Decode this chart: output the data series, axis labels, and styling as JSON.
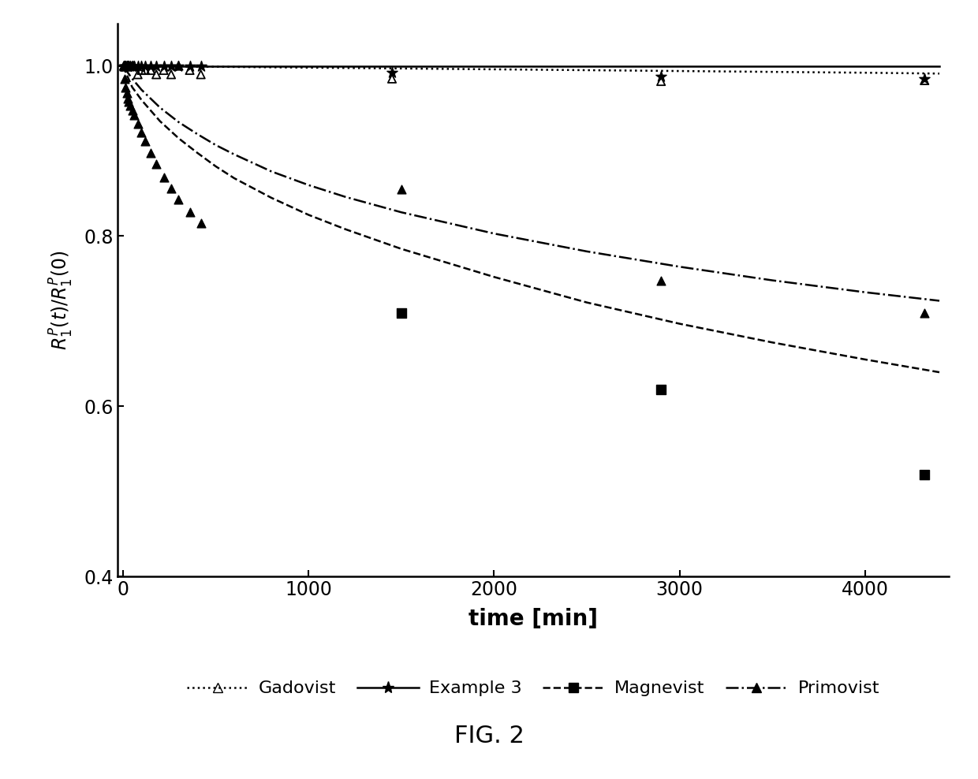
{
  "title": "FIG. 2",
  "ylabel": "$R_1^P(t)/R_1^P(0)$",
  "xlabel": "time [min]",
  "xlim": [
    -30,
    4450
  ],
  "ylim": [
    0.4,
    1.05
  ],
  "yticks": [
    0.4,
    0.6,
    0.8,
    1.0
  ],
  "xticks": [
    0,
    1000,
    2000,
    3000,
    4000
  ],
  "gadovist_scatter_x": [
    5,
    10,
    15,
    20,
    25,
    30,
    40,
    50,
    60,
    80,
    100,
    120,
    150,
    180,
    220,
    260,
    300,
    360,
    420,
    1450,
    2900,
    4320
  ],
  "gadovist_scatter_y": [
    1.0,
    1.0,
    1.0,
    1.0,
    1.0,
    1.0,
    1.0,
    1.0,
    1.0,
    0.99,
    0.995,
    0.995,
    0.995,
    0.99,
    0.995,
    0.99,
    1.0,
    0.995,
    0.99,
    0.985,
    0.982,
    0.983
  ],
  "gadovist_curve_x": [
    0,
    100,
    300,
    500,
    1000,
    1500,
    2000,
    2500,
    3000,
    3500,
    4000,
    4400
  ],
  "gadovist_curve_y": [
    1.0,
    0.999,
    0.999,
    0.999,
    0.998,
    0.997,
    0.996,
    0.995,
    0.994,
    0.993,
    0.992,
    0.991
  ],
  "example3_scatter_x": [
    5,
    10,
    15,
    20,
    25,
    30,
    40,
    50,
    60,
    80,
    100,
    120,
    150,
    180,
    220,
    260,
    300,
    360,
    420,
    1450,
    2900,
    4320
  ],
  "example3_scatter_y": [
    1.0,
    1.0,
    1.0,
    1.0,
    1.0,
    1.0,
    1.0,
    1.0,
    1.0,
    1.0,
    1.0,
    1.0,
    1.0,
    1.0,
    1.0,
    1.0,
    1.0,
    1.0,
    1.0,
    0.992,
    0.988,
    0.985
  ],
  "example3_curve_x": [
    0,
    1000,
    2000,
    3000,
    4000,
    4400
  ],
  "example3_curve_y": [
    1.0,
    1.0,
    1.0,
    1.0,
    1.0,
    1.0
  ],
  "magnevist_scatter_x": [
    1500,
    2900,
    4320
  ],
  "magnevist_scatter_y": [
    0.71,
    0.62,
    0.52
  ],
  "magnevist_curve_x": [
    0,
    50,
    100,
    200,
    300,
    400,
    500,
    600,
    800,
    1000,
    1200,
    1500,
    2000,
    2500,
    3000,
    3500,
    4000,
    4400
  ],
  "magnevist_curve_y": [
    1.0,
    0.975,
    0.96,
    0.935,
    0.915,
    0.898,
    0.882,
    0.868,
    0.845,
    0.825,
    0.808,
    0.785,
    0.752,
    0.722,
    0.697,
    0.675,
    0.655,
    0.64
  ],
  "primovist_scatter_x": [
    5,
    10,
    15,
    20,
    25,
    30,
    40,
    50,
    60,
    80,
    100,
    120,
    150,
    180,
    220,
    260,
    300,
    360,
    420,
    1500,
    2900,
    4320
  ],
  "primovist_scatter_y": [
    1.0,
    0.985,
    0.975,
    0.968,
    0.962,
    0.958,
    0.953,
    0.948,
    0.942,
    0.932,
    0.922,
    0.912,
    0.898,
    0.885,
    0.869,
    0.856,
    0.843,
    0.828,
    0.815,
    0.855,
    0.748,
    0.71
  ],
  "primovist_curve_x": [
    0,
    50,
    100,
    200,
    300,
    400,
    500,
    600,
    800,
    1000,
    1200,
    1500,
    2000,
    2500,
    3000,
    3500,
    4000,
    4400
  ],
  "primovist_curve_y": [
    1.0,
    0.985,
    0.972,
    0.951,
    0.934,
    0.92,
    0.907,
    0.896,
    0.876,
    0.86,
    0.846,
    0.828,
    0.803,
    0.782,
    0.764,
    0.748,
    0.734,
    0.724
  ],
  "color": "black",
  "background": "white",
  "legend_entries": [
    "Gadovist",
    "Example 3",
    "Magnevist",
    "Primovist"
  ]
}
